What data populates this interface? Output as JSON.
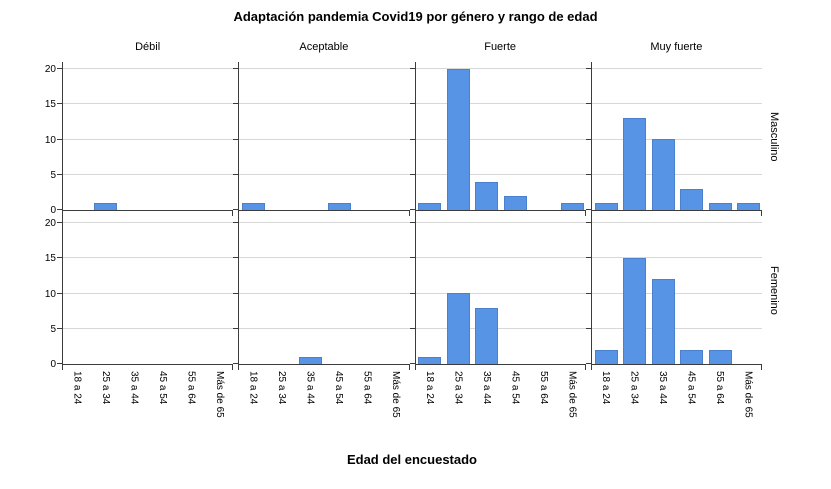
{
  "chart_data": {
    "type": "bar",
    "title": "Adaptación pandemia Covid19 por género y rango de edad",
    "xlabel": "Edad del encuestado",
    "facet_columns": [
      "Débil",
      "Aceptable",
      "Fuerte",
      "Muy fuerte"
    ],
    "facet_rows": [
      "Masculino",
      "Femenino"
    ],
    "categories": [
      "18 a 24",
      "25 a 34",
      "35 a 44",
      "45 a 54",
      "55 a 64",
      "Más de 65"
    ],
    "ylim": [
      0,
      20
    ],
    "yticks": [
      0,
      5,
      10,
      15,
      20
    ],
    "grid": "horizontal",
    "legend": "none",
    "colors": {
      "bar_fill": "#5894E6",
      "bar_border": "#4A80CC",
      "axis": "#3C3C3C",
      "gridline": "#D8D8D8",
      "text": "#000000"
    },
    "series": [
      {
        "row": "Masculino",
        "column": "Débil",
        "values": [
          0,
          1,
          0,
          0,
          0,
          0
        ]
      },
      {
        "row": "Masculino",
        "column": "Aceptable",
        "values": [
          1,
          0,
          0,
          1,
          0,
          0
        ]
      },
      {
        "row": "Masculino",
        "column": "Fuerte",
        "values": [
          1,
          20,
          4,
          2,
          0,
          1
        ]
      },
      {
        "row": "Masculino",
        "column": "Muy fuerte",
        "values": [
          1,
          13,
          10,
          3,
          1,
          1
        ]
      },
      {
        "row": "Femenino",
        "column": "Débil",
        "values": [
          0,
          0,
          0,
          0,
          0,
          0
        ]
      },
      {
        "row": "Femenino",
        "column": "Aceptable",
        "values": [
          0,
          0,
          1,
          0,
          0,
          0
        ]
      },
      {
        "row": "Femenino",
        "column": "Fuerte",
        "values": [
          1,
          10,
          8,
          0,
          0,
          0
        ]
      },
      {
        "row": "Femenino",
        "column": "Muy fuerte",
        "values": [
          2,
          15,
          12,
          2,
          2,
          0
        ]
      }
    ]
  }
}
